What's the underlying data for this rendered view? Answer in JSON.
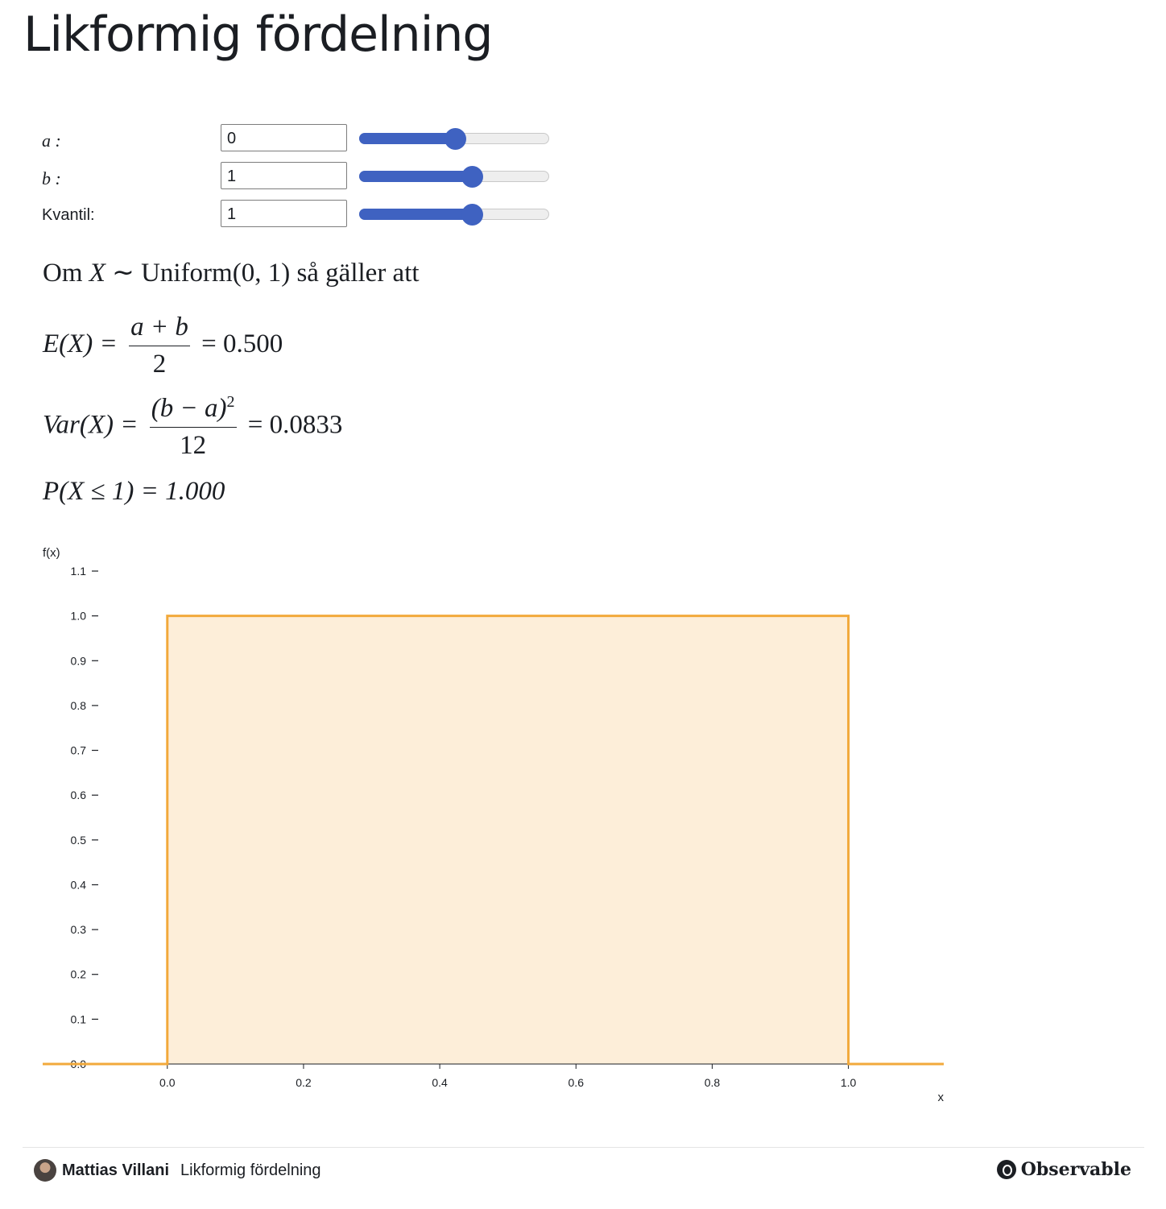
{
  "page_title": "Likformig fördelning",
  "controls": [
    {
      "label": "a :",
      "value": "0",
      "slider_fraction": 0.5
    },
    {
      "label": "b :",
      "value": "1",
      "slider_fraction": 0.59
    },
    {
      "label": "Kvantil:",
      "value": "1",
      "slider_fraction": 0.59
    }
  ],
  "formulas": {
    "intro_prefix": "Om ",
    "intro_var": "X",
    "intro_mid": " ∼ Uniform(0, 1) så gäller att",
    "ex_lhs": "E(X) =",
    "ex_num": "a + b",
    "ex_den": "2",
    "ex_rhs": "= 0.500",
    "var_lhs": "Var(X) =",
    "var_num": "(b − a)",
    "var_sup": "2",
    "var_den": "12",
    "var_rhs": "= 0.0833",
    "prob": "P(X ≤ 1) = 1.000"
  },
  "chart_data": {
    "type": "area",
    "ylabel": "f(x)",
    "xlabel": "x",
    "xlim": [
      -0.183,
      1.14
    ],
    "ylim": [
      0,
      1.1
    ],
    "x_ticks": [
      "0.0",
      "0.2",
      "0.4",
      "0.6",
      "0.8",
      "1.0"
    ],
    "y_ticks": [
      "0.0",
      "0.1",
      "0.2",
      "0.3",
      "0.4",
      "0.5",
      "0.6",
      "0.7",
      "0.8",
      "0.9",
      "1.0",
      "1.1"
    ],
    "x": [
      -0.183,
      0,
      0,
      1,
      1,
      1.14
    ],
    "y": [
      0,
      0,
      1,
      1,
      0,
      0
    ],
    "shaded_interval": [
      0,
      1
    ],
    "line_color": "#f2a93b",
    "fill_color": "#fdeed9"
  },
  "footer": {
    "author": "Mattias Villani",
    "notebook_title": "Likformig fördelning",
    "brand": "Observable"
  }
}
